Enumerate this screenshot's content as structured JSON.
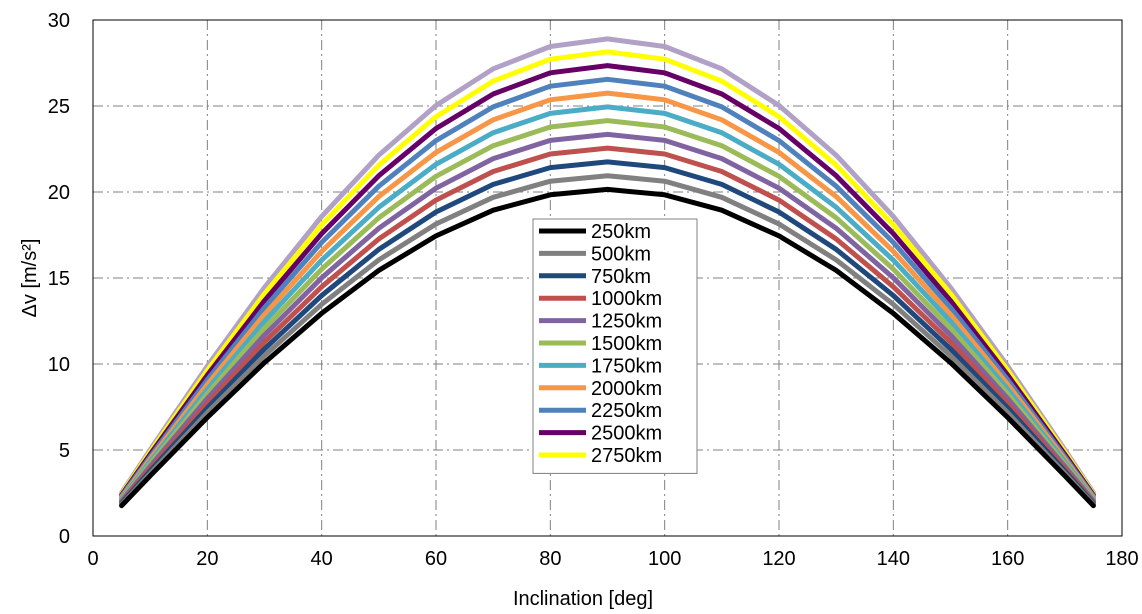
{
  "chart_data": {
    "type": "line",
    "title": "",
    "xlabel": "Inclination [deg]",
    "ylabel": "Δv [m/s²]",
    "xlim": [
      0,
      180
    ],
    "ylim": [
      0,
      30
    ],
    "xticks": [
      0,
      20,
      40,
      60,
      80,
      100,
      120,
      140,
      160,
      180
    ],
    "yticks": [
      0,
      5,
      10,
      15,
      20,
      25,
      30
    ],
    "grid": true,
    "legend_position": "center",
    "x": [
      5,
      10,
      20,
      30,
      40,
      50,
      60,
      70,
      80,
      90,
      100,
      110,
      120,
      130,
      140,
      150,
      160,
      170,
      175
    ],
    "series": [
      {
        "name": "250km",
        "color": "#000000",
        "peak": 20.15,
        "values": [
          1.76,
          3.5,
          6.89,
          10.08,
          12.95,
          15.44,
          17.45,
          18.94,
          19.84,
          20.15,
          19.84,
          18.94,
          17.45,
          15.44,
          12.95,
          10.08,
          6.89,
          3.5,
          1.76
        ]
      },
      {
        "name": "500km",
        "color": "#808080",
        "peak": 20.95,
        "values": [
          1.83,
          3.64,
          7.17,
          10.48,
          13.47,
          16.05,
          18.14,
          19.69,
          20.63,
          20.95,
          20.63,
          19.69,
          18.14,
          16.05,
          13.47,
          10.48,
          7.17,
          3.64,
          1.83
        ]
      },
      {
        "name": "750km",
        "color": "#1f497d",
        "peak": 21.75,
        "values": [
          1.9,
          3.78,
          7.44,
          10.88,
          13.98,
          16.66,
          18.84,
          20.44,
          21.42,
          21.75,
          21.42,
          20.44,
          18.84,
          16.66,
          13.98,
          10.88,
          7.44,
          3.78,
          1.9
        ]
      },
      {
        "name": "1000km",
        "color": "#c0504d",
        "peak": 22.55,
        "values": [
          1.97,
          3.92,
          7.71,
          11.28,
          14.49,
          17.27,
          19.53,
          21.19,
          22.21,
          22.55,
          22.21,
          21.19,
          19.53,
          17.27,
          14.49,
          11.28,
          7.71,
          3.92,
          1.97
        ]
      },
      {
        "name": "1250km",
        "color": "#8064a2",
        "peak": 23.35,
        "values": [
          2.04,
          4.05,
          7.99,
          11.68,
          15.01,
          17.89,
          20.22,
          21.94,
          23.0,
          23.35,
          23.0,
          21.94,
          20.22,
          17.89,
          15.01,
          11.68,
          7.99,
          4.05,
          2.04
        ]
      },
      {
        "name": "1500km",
        "color": "#9bbb59",
        "peak": 24.15,
        "values": [
          2.1,
          4.19,
          8.26,
          12.08,
          15.52,
          18.5,
          20.91,
          22.69,
          23.78,
          24.15,
          23.78,
          22.69,
          20.91,
          18.5,
          15.52,
          12.08,
          8.26,
          4.19,
          2.1
        ]
      },
      {
        "name": "1750km",
        "color": "#4bacc6",
        "peak": 24.95,
        "values": [
          2.17,
          4.33,
          8.53,
          12.48,
          16.04,
          19.11,
          21.61,
          23.45,
          24.57,
          24.95,
          24.57,
          23.45,
          21.61,
          19.11,
          16.04,
          12.48,
          8.53,
          4.33,
          2.17
        ]
      },
      {
        "name": "2000km",
        "color": "#f79646",
        "peak": 25.75,
        "values": [
          2.24,
          4.47,
          8.81,
          12.88,
          16.55,
          19.73,
          22.3,
          24.2,
          25.36,
          25.75,
          25.36,
          24.2,
          22.3,
          19.73,
          16.55,
          12.88,
          8.81,
          4.47,
          2.24
        ]
      },
      {
        "name": "2250km",
        "color": "#4f81bd",
        "peak": 26.55,
        "values": [
          2.31,
          4.61,
          9.08,
          13.28,
          17.07,
          20.34,
          22.99,
          24.95,
          26.15,
          26.55,
          26.15,
          24.95,
          22.99,
          20.34,
          17.07,
          13.28,
          9.08,
          4.61,
          2.31
        ]
      },
      {
        "name": "2500km",
        "color": "#660066",
        "peak": 27.35,
        "values": [
          2.38,
          4.75,
          9.35,
          13.68,
          17.58,
          20.95,
          23.69,
          25.7,
          26.93,
          27.35,
          26.93,
          25.7,
          23.69,
          20.95,
          17.58,
          13.68,
          9.35,
          4.75,
          2.38
        ]
      },
      {
        "name": "2750km",
        "color": "#ffff00",
        "peak": 28.15,
        "values": [
          2.45,
          4.89,
          9.63,
          14.08,
          18.09,
          21.56,
          24.38,
          26.45,
          27.72,
          28.15,
          27.72,
          26.45,
          24.38,
          21.56,
          18.09,
          14.08,
          9.63,
          4.89,
          2.45
        ]
      },
      {
        "name": "",
        "color": "#b2a1c7",
        "peak": 28.9,
        "values": [
          2.52,
          5.02,
          9.88,
          14.45,
          18.58,
          22.14,
          25.03,
          27.16,
          28.46,
          28.9,
          28.46,
          27.16,
          25.03,
          22.14,
          18.58,
          14.45,
          9.88,
          5.02,
          2.52
        ]
      }
    ]
  }
}
